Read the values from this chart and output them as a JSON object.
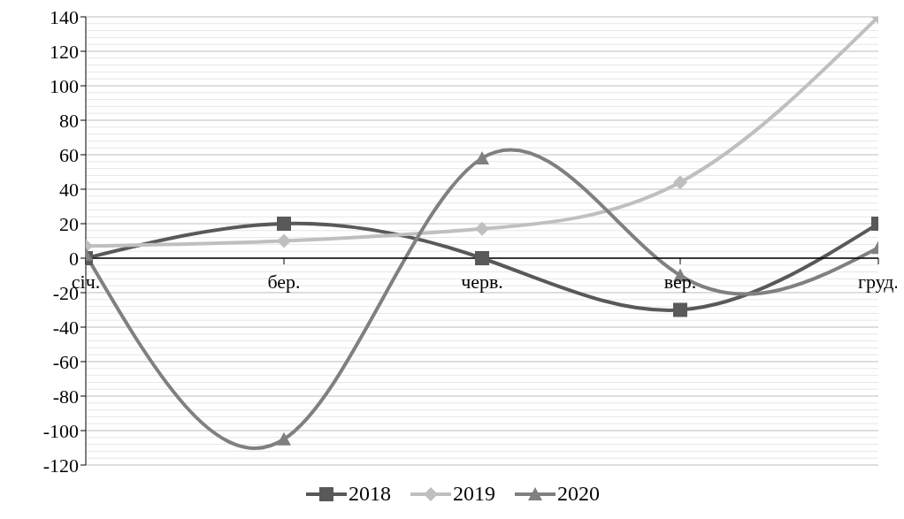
{
  "chart_data": {
    "type": "line",
    "categories": [
      "січ.",
      "бер.",
      "черв.",
      "вер.",
      "груд."
    ],
    "series": [
      {
        "name": "2018",
        "color": "#595959",
        "marker": "square",
        "values": [
          0,
          20,
          0,
          -30,
          20
        ]
      },
      {
        "name": "2019",
        "color": "#bfbfbf",
        "marker": "diamond",
        "values": [
          7,
          10,
          17,
          44,
          140
        ]
      },
      {
        "name": "2020",
        "color": "#808080",
        "marker": "triangle",
        "values": [
          2,
          -105,
          58,
          -10,
          6
        ]
      }
    ],
    "ylim": [
      -120,
      140
    ],
    "yticks": [
      -120,
      -100,
      -80,
      -60,
      -40,
      -20,
      0,
      20,
      40,
      60,
      80,
      100,
      120,
      140
    ],
    "grid": "y",
    "legend": "bottom",
    "line_style": "solid"
  }
}
